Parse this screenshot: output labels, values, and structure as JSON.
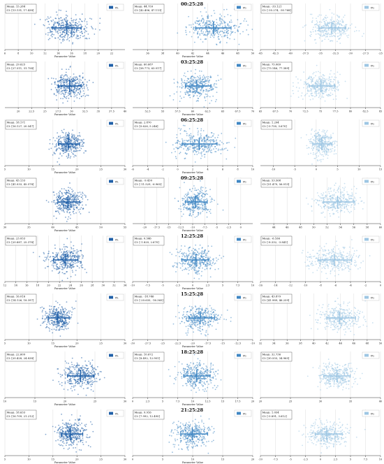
{
  "figure": {
    "rows": [
      {
        "title": "00:25:28",
        "panels": [
          {
            "legend": "σ₁",
            "color": "#1f5fa8",
            "mean": "15.284",
            "ci": "[13.131, 17.438]",
            "center": 15.284,
            "ci_low": 13.131,
            "ci_high": 17.438,
            "spread": 1.6,
            "axis_min": 6,
            "axis_max": 24,
            "ticks": [
              6,
              8,
              10,
              12,
              14,
              16,
              18,
              20,
              22
            ],
            "xlabel": "Parameter Value"
          },
          {
            "legend": "σ₂",
            "color": "#3f86c3",
            "mean": "44.759",
            "ci": "[42.406, 47.113]",
            "center": 44.759,
            "ci_low": 42.406,
            "ci_high": 47.113,
            "spread": 1.8,
            "axis_min": 34,
            "axis_max": 50,
            "ticks": [
              36,
              38,
              40,
              42,
              44,
              46,
              48,
              50
            ],
            "xlabel": "Parameter Value"
          },
          {
            "legend": "σ₃",
            "color": "#9dc6e3",
            "mean": "-33.121",
            "ci": "[-35.274, -30.768]",
            "center": -33.121,
            "ci_low": -35.274,
            "ci_high": -30.768,
            "spread": 1.7,
            "axis_min": -45,
            "axis_max": -25,
            "ticks": [
              -45.0,
              -42.5,
              -40.0,
              -37.5,
              -35.0,
              -32.5,
              -30.0,
              -27.5,
              -25.0
            ],
            "xlabel": ""
          }
        ]
      },
      {
        "title": "03:25:28",
        "panels": [
          {
            "legend": "σ₁",
            "color": "#1f5fa8",
            "mean": "29.625",
            "ci": "[27.511, 31.754]",
            "center": 29.625,
            "ci_low": 27.511,
            "ci_high": 31.754,
            "spread": 1.6,
            "axis_min": 17.5,
            "axis_max": 40,
            "ticks": [
              20.0,
              22.5,
              25.0,
              27.5,
              30.0,
              32.5,
              35.0,
              37.5,
              40.0
            ],
            "xlabel": "Parameter Value"
          },
          {
            "legend": "σ₂",
            "color": "#3f86c3",
            "mean": "60.687",
            "ci": "[58.773, 63.017]",
            "center": 60.687,
            "ci_low": 58.773,
            "ci_high": 63.017,
            "spread": 1.6,
            "axis_min": 50,
            "axis_max": 70,
            "ticks": [
              52.5,
              55.0,
              57.5,
              60.0,
              62.5,
              65.0,
              67.5,
              70.0
            ],
            "xlabel": "Parameter Value"
          },
          {
            "legend": "σ₃",
            "color": "#9dc6e3",
            "mean": "75.069",
            "ci": "[73.146, 77.389]",
            "center": 75.069,
            "ci_low": 73.146,
            "ci_high": 77.389,
            "spread": 1.6,
            "axis_min": 65,
            "axis_max": 85,
            "ticks": [
              65.0,
              67.5,
              70.0,
              72.5,
              75.0,
              77.5,
              80.0,
              82.5,
              85.0
            ],
            "xlabel": ""
          }
        ]
      },
      {
        "title": "06:25:28",
        "panels": [
          {
            "legend": "σ₁",
            "color": "#1f5fa8",
            "mean": "18.171",
            "ci": "[16.127, 20.547]",
            "center": 18.171,
            "ci_low": 16.127,
            "ci_high": 20.547,
            "spread": 1.6,
            "axis_min": 5,
            "axis_max": 30,
            "ticks": [
              5,
              10,
              15,
              20,
              25,
              30
            ],
            "xlabel": "Parameter Value"
          },
          {
            "legend": "σ₂",
            "color": "#3f86c3",
            "mean": "2.870",
            "ci": "[0.626, 5.246]",
            "center": 2.87,
            "ci_low": 0.626,
            "ci_high": 5.246,
            "spread": 1.7,
            "axis_min": -6,
            "axis_max": 10,
            "ticks": [
              -6,
              -4,
              -2,
              0,
              2,
              4,
              6,
              8,
              10
            ],
            "xlabel": "Parameter Value"
          },
          {
            "legend": "σ₃",
            "color": "#9dc6e3",
            "mean": "1.294",
            "ci": "[-0.750, 3.670]",
            "center": 1.294,
            "ci_low": -0.75,
            "ci_high": 3.67,
            "spread": 1.6,
            "axis_min": -13,
            "axis_max": 15,
            "ticks": [
              -10,
              -5,
              0,
              5,
              10,
              15
            ],
            "xlabel": ""
          }
        ]
      },
      {
        "title": "09:25:28",
        "panels": [
          {
            "legend": "σ₁",
            "color": "#1f5fa8",
            "mean": "43.133",
            "ci": "[41.033, 45.578]",
            "center": 43.133,
            "ci_low": 41.033,
            "ci_high": 45.578,
            "spread": 1.6,
            "axis_min": 30,
            "axis_max": 55,
            "ticks": [
              30,
              35,
              40,
              45,
              50,
              55
            ],
            "xlabel": "Parameter Value"
          },
          {
            "legend": "σ₂",
            "color": "#3f86c3",
            "mean": "-9.430",
            "ci": "[-11.529, -6.965]",
            "center": -9.43,
            "ci_low": -11.529,
            "ci_high": -6.965,
            "spread": 1.6,
            "axis_min": -22.5,
            "axis_max": 2.5,
            "ticks": [
              -20.0,
              -17.5,
              -15.0,
              -12.5,
              -10.0,
              -7.5,
              -5.0,
              -2.5,
              0.0
            ],
            "xlabel": "Parameter Value"
          },
          {
            "legend": "σ₃",
            "color": "#9dc6e3",
            "mean": "53.568",
            "ci": "[51.470, 56.013]",
            "center": 53.568,
            "ci_low": 51.47,
            "ci_high": 56.013,
            "spread": 1.6,
            "axis_min": 42,
            "axis_max": 60,
            "ticks": [
              44,
              46,
              48,
              50,
              52,
              54,
              56,
              58,
              60
            ],
            "xlabel": ""
          }
        ]
      },
      {
        "title": "12:25:28",
        "panels": [
          {
            "legend": "σ₁",
            "color": "#1f5fa8",
            "mean": "23.053",
            "ci": "[20.887, 25.378]",
            "center": 23.053,
            "ci_low": 20.887,
            "ci_high": 25.378,
            "spread": 1.6,
            "axis_min": 12,
            "axis_max": 34,
            "ticks": [
              12,
              14,
              16,
              18,
              20,
              22,
              24,
              26,
              28,
              30,
              32,
              34
            ],
            "xlabel": "Parameter Value"
          },
          {
            "legend": "σ₂",
            "color": "#3f86c3",
            "mean": "0.546",
            "ci": "[-1.820, 2.670]",
            "center": 0.546,
            "ci_low": -1.82,
            "ci_high": 2.67,
            "spread": 1.6,
            "axis_min": -10,
            "axis_max": 10,
            "ticks": [
              -10.0,
              -7.5,
              -5.0,
              -2.5,
              0.0,
              2.5,
              5.0,
              7.5,
              10.0
            ],
            "xlabel": "Parameter Value"
          },
          {
            "legend": "σ₃",
            "color": "#9dc6e3",
            "mean": "-6.166",
            "ci": "[-8.332, -3.841]",
            "center": -6.166,
            "ci_low": -8.332,
            "ci_high": -3.841,
            "spread": 1.6,
            "axis_min": -16,
            "axis_max": 0,
            "ticks": [
              -16,
              -14,
              -12,
              -10,
              -8,
              -6,
              -4,
              -2,
              0
            ],
            "xlabel": ""
          }
        ]
      },
      {
        "title": "15:25:28",
        "panels": [
          {
            "legend": "σ₁",
            "color": "#1f5fa8",
            "mean": "16.016",
            "ci": "[14.126, 18.397]",
            "center": 16.016,
            "ci_low": 14.126,
            "ci_high": 18.397,
            "spread": 1.6,
            "axis_min": 5,
            "axis_max": 30,
            "ticks": [
              5,
              10,
              15,
              20,
              25,
              30
            ],
            "xlabel": "Parameter Value"
          },
          {
            "legend": "σ₂",
            "color": "#3f86c3",
            "mean": "-18.746",
            "ci": "[-20.635, -16.365]",
            "center": -18.746,
            "ci_low": -20.635,
            "ci_high": -16.365,
            "spread": 1.6,
            "axis_min": -30,
            "axis_max": -10,
            "ticks": [
              -30.0,
              -27.5,
              -25.0,
              -22.5,
              -20.0,
              -17.5,
              -15.0,
              -12.5,
              -10.0
            ],
            "xlabel": "Parameter Value"
          },
          {
            "legend": "σ₃",
            "color": "#9dc6e3",
            "mean": "43.879",
            "ci": "[41.989, 46.259]",
            "center": 43.879,
            "ci_low": 41.989,
            "ci_high": 46.259,
            "spread": 1.6,
            "axis_min": 32,
            "axis_max": 50,
            "ticks": [
              32,
              34,
              36,
              38,
              40,
              42,
              44,
              46,
              48,
              50
            ],
            "xlabel": ""
          }
        ]
      },
      {
        "title": "18:25:28",
        "panels": [
          {
            "legend": "σ₁",
            "color": "#1f5fa8",
            "mean": "22.609",
            "ci": "[20.428, 24.838]",
            "center": 22.609,
            "ci_low": 20.428,
            "ci_high": 24.838,
            "spread": 1.6,
            "axis_min": 10,
            "axis_max": 30,
            "ticks": [
              10,
              15,
              20,
              25,
              30
            ],
            "xlabel": "Parameter Value"
          },
          {
            "legend": "σ₂",
            "color": "#3f86c3",
            "mean": "10.672",
            "ci": "[8.492, 12.901]",
            "center": 10.672,
            "ci_low": 8.492,
            "ci_high": 12.901,
            "spread": 1.6,
            "axis_min": 0,
            "axis_max": 20,
            "ticks": [
              0.0,
              2.5,
              5.0,
              7.5,
              10.0,
              12.5,
              15.0,
              17.5,
              20.0
            ],
            "xlabel": "Parameter Value"
          },
          {
            "legend": "σ₃",
            "color": "#9dc6e3",
            "mean": "32.736",
            "ci": "[30.555, 34.965]",
            "center": 32.736,
            "ci_low": 30.555,
            "ci_high": 34.965,
            "spread": 1.6,
            "axis_min": 20,
            "axis_max": 40,
            "ticks": [
              20,
              25,
              30,
              35,
              40
            ],
            "xlabel": ""
          }
        ]
      },
      {
        "title": "21:25:28",
        "panels": [
          {
            "legend": "σ₁",
            "color": "#1f5fa8",
            "mean": "18.633",
            "ci": "[16.709, 21.212]",
            "center": 18.633,
            "ci_low": 16.709,
            "ci_high": 21.212,
            "spread": 1.6,
            "axis_min": 5,
            "axis_max": 30,
            "ticks": [
              5,
              10,
              15,
              20,
              25,
              30
            ],
            "xlabel": "Parameter Value"
          },
          {
            "legend": "σ₂",
            "color": "#3f86c3",
            "mean": "9.916",
            "ci": "[7.992, 12.495]",
            "center": 9.916,
            "ci_low": 7.992,
            "ci_high": 12.495,
            "spread": 1.6,
            "axis_min": 0,
            "axis_max": 20,
            "ticks": [
              0,
              5,
              10,
              15,
              20
            ],
            "xlabel": "Parameter Value"
          },
          {
            "legend": "σ₃",
            "color": "#9dc6e3",
            "mean": "1.054",
            "ci": "[-0.891, 3.612]",
            "center": 1.054,
            "ci_low": -0.891,
            "ci_high": 3.612,
            "spread": 1.6,
            "axis_min": -10,
            "axis_max": 10,
            "ticks": [
              -10.0,
              -7.5,
              -5.0,
              -2.5,
              0.0,
              2.5,
              5.0,
              7.5,
              10.0
            ],
            "xlabel": ""
          }
        ]
      }
    ]
  },
  "chart_data": {
    "type": "scatter",
    "rows": [
      "00:25:28",
      "03:25:28",
      "06:25:28",
      "09:25:28",
      "12:25:28",
      "15:25:28",
      "18:25:28",
      "21:25:28"
    ],
    "series": [
      {
        "name": "σ₁",
        "means": [
          15.284,
          29.625,
          18.171,
          43.133,
          23.053,
          16.016,
          22.609,
          18.633
        ]
      },
      {
        "name": "σ₂",
        "means": [
          44.759,
          60.687,
          2.87,
          -9.43,
          0.546,
          -18.746,
          10.672,
          9.916
        ]
      },
      {
        "name": "σ₃",
        "means": [
          -33.121,
          75.069,
          1.294,
          53.568,
          -6.166,
          43.879,
          32.736,
          1.054
        ]
      }
    ],
    "xlabel": "Parameter Value",
    "grid": true,
    "legend_position": "top-right"
  }
}
